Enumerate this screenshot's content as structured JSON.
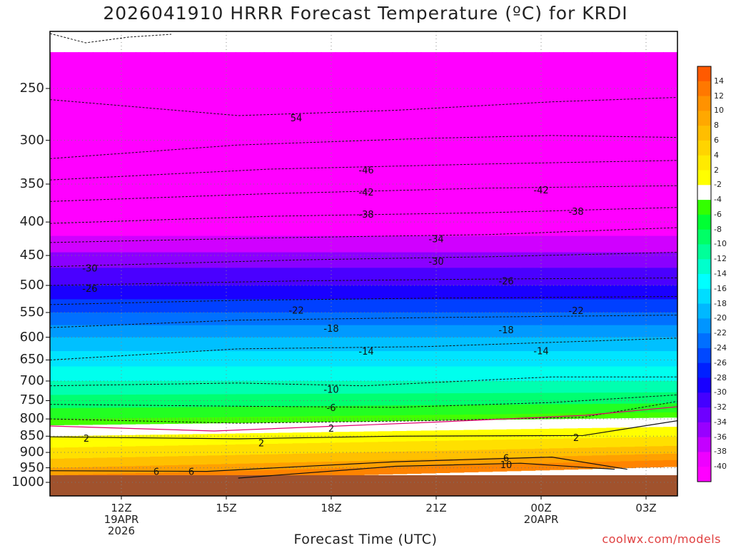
{
  "title": "2026041910 HRRR Forecast Temperature (ºC) for KRDI",
  "chart_data": {
    "type": "contour",
    "title": "2026041910 HRRR Forecast Temperature (ºC) for KRDI",
    "xlabel": "Forecast Time (UTC)",
    "ylabel": "",
    "y_scale": "log-pressure (reversed)",
    "y_ticks": [
      250,
      300,
      350,
      400,
      450,
      500,
      550,
      600,
      650,
      700,
      750,
      800,
      850,
      900,
      950,
      1000
    ],
    "x_ticks": [
      {
        "label": "12Z",
        "sub1": "19APR",
        "sub2": "2026"
      },
      {
        "label": "15Z",
        "sub1": "",
        "sub2": ""
      },
      {
        "label": "18Z",
        "sub1": "",
        "sub2": ""
      },
      {
        "label": "21Z",
        "sub1": "",
        "sub2": ""
      },
      {
        "label": "00Z",
        "sub1": "20APR",
        "sub2": ""
      },
      {
        "label": "03Z",
        "sub1": "",
        "sub2": ""
      }
    ],
    "xlim_hours_since_10Z": [
      0,
      18
    ],
    "grid": true,
    "contour_labels": [
      {
        "v": "54",
        "t": 7.0,
        "p": 277
      },
      {
        "v": "-46",
        "t": 9.0,
        "p": 333
      },
      {
        "v": "-42",
        "t": 9.0,
        "p": 360
      },
      {
        "v": "-42",
        "t": 14.0,
        "p": 357
      },
      {
        "v": "-38",
        "t": 9.0,
        "p": 389
      },
      {
        "v": "-38",
        "t": 15.0,
        "p": 385
      },
      {
        "v": "-34",
        "t": 11.0,
        "p": 424
      },
      {
        "v": "-30",
        "t": 1.1,
        "p": 470
      },
      {
        "v": "-30",
        "t": 11.0,
        "p": 459
      },
      {
        "v": "-26",
        "t": 1.1,
        "p": 505
      },
      {
        "v": "-26",
        "t": 13.0,
        "p": 492
      },
      {
        "v": "-22",
        "t": 7.0,
        "p": 545
      },
      {
        "v": "-22",
        "t": 15.0,
        "p": 546
      },
      {
        "v": "-18",
        "t": 8.0,
        "p": 581
      },
      {
        "v": "-18",
        "t": 13.0,
        "p": 584
      },
      {
        "v": "-14",
        "t": 9.0,
        "p": 630
      },
      {
        "v": "-14",
        "t": 14.0,
        "p": 629
      },
      {
        "v": "-10",
        "t": 8.0,
        "p": 721
      },
      {
        "v": "-6",
        "t": 8.0,
        "p": 768
      },
      {
        "v": "2",
        "t": 8.0,
        "p": 826
      },
      {
        "v": "2",
        "t": 1.0,
        "p": 856
      },
      {
        "v": "2",
        "t": 6.0,
        "p": 870
      },
      {
        "v": "2",
        "t": 15.0,
        "p": 854
      },
      {
        "v": "6",
        "t": 3.0,
        "p": 962
      },
      {
        "v": "6",
        "t": 4.0,
        "p": 962
      },
      {
        "v": "6",
        "t": 13.0,
        "p": 917
      },
      {
        "v": "10",
        "t": 13.0,
        "p": 939
      }
    ],
    "colorbar": {
      "labels": [
        "14",
        "12",
        "10",
        "8",
        "6",
        "4",
        "2",
        "-2",
        "-4",
        "-6",
        "-8",
        "-10",
        "-12",
        "-14",
        "-16",
        "-18",
        "-20",
        "-22",
        "-24",
        "-26",
        "-28",
        "-30",
        "-32",
        "-34",
        "-36",
        "-38",
        "-40"
      ],
      "colors": [
        "#ff5a00",
        "#ff7800",
        "#ff9200",
        "#ffa800",
        "#ffbe00",
        "#ffd400",
        "#ffea00",
        "#ffff00",
        "#ffffff",
        "#33ff00",
        "#00ff33",
        "#00ff66",
        "#00ff99",
        "#00ffcc",
        "#00ffff",
        "#00ddff",
        "#00b8ff",
        "#0095ff",
        "#006fff",
        "#0048ff",
        "#0020ff",
        "#1800ff",
        "#4400ff",
        "#6e00ff",
        "#9800ff",
        "#c400ff",
        "#ee00ff",
        "#ff00ff"
      ]
    }
  },
  "credit": "coolwx.com/models"
}
